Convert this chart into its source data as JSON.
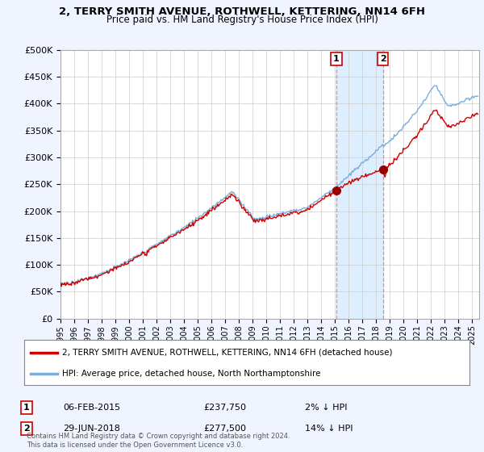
{
  "title": "2, TERRY SMITH AVENUE, ROTHWELL, KETTERING, NN14 6FH",
  "subtitle": "Price paid vs. HM Land Registry's House Price Index (HPI)",
  "ylabel_ticks": [
    "£0",
    "£50K",
    "£100K",
    "£150K",
    "£200K",
    "£250K",
    "£300K",
    "£350K",
    "£400K",
    "£450K",
    "£500K"
  ],
  "ytick_values": [
    0,
    50000,
    100000,
    150000,
    200000,
    250000,
    300000,
    350000,
    400000,
    450000,
    500000
  ],
  "ylim": [
    0,
    500000
  ],
  "xlim_start": 1995.0,
  "xlim_end": 2025.5,
  "hpi_color": "#7aaddb",
  "price_color": "#cc0000",
  "background_color": "#f0f4ff",
  "plot_bg_color": "#ffffff",
  "grid_color": "#cccccc",
  "purchase1_x": 2015.09,
  "purchase1_price": 237750,
  "purchase1_date": "06-FEB-2015",
  "purchase1_diff": "2% ↓ HPI",
  "purchase2_x": 2018.49,
  "purchase2_price": 277500,
  "purchase2_date": "29-JUN-2018",
  "purchase2_diff": "14% ↓ HPI",
  "legend_line1": "2, TERRY SMITH AVENUE, ROTHWELL, KETTERING, NN14 6FH (detached house)",
  "legend_line2": "HPI: Average price, detached house, North Northamptonshire",
  "footnote": "Contains HM Land Registry data © Crown copyright and database right 2024.\nThis data is licensed under the Open Government Licence v3.0.",
  "xtick_years": [
    1995,
    1996,
    1997,
    1998,
    1999,
    2000,
    2001,
    2002,
    2003,
    2004,
    2005,
    2006,
    2007,
    2008,
    2009,
    2010,
    2011,
    2012,
    2013,
    2014,
    2015,
    2016,
    2017,
    2018,
    2019,
    2020,
    2021,
    2022,
    2023,
    2024,
    2025
  ]
}
